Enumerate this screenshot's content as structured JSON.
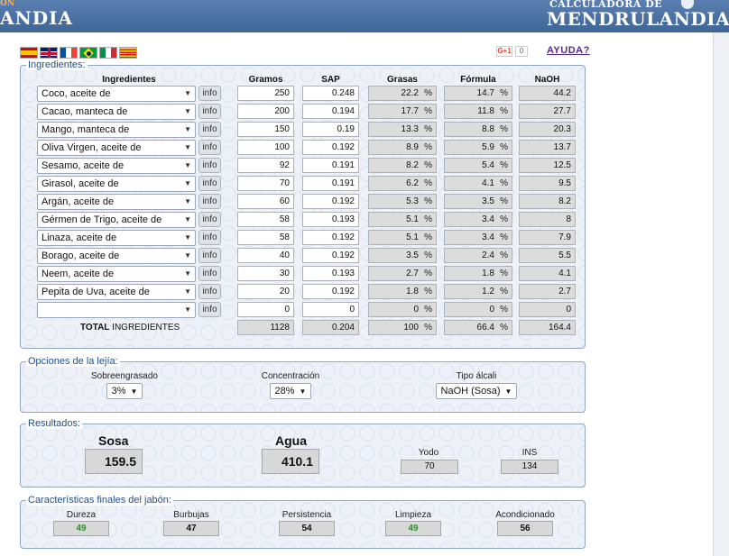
{
  "header": {
    "left_small": "ON",
    "left_big": "ANDIA",
    "right_small": "CALCULADORA DE",
    "right_big": "MENDRULANDIA"
  },
  "flags": [
    "spain-flag",
    "uk-flag",
    "france-flag",
    "brazil-flag",
    "italy-flag",
    "catalonia-flag"
  ],
  "gplus": {
    "label": "G+1",
    "count": "0"
  },
  "help_link": "AYUDA?",
  "ingredientes": {
    "legend": "Ingredientes:",
    "headers": {
      "ingredient": "Ingredientes",
      "grams": "Gramos",
      "sap": "SAP",
      "fat": "Grasas",
      "formula": "Fórmula",
      "naoh": "NaOH"
    },
    "info_label": "info",
    "percent_sign": "%",
    "rows": [
      {
        "name": "Coco, aceite de",
        "grams": "250",
        "sap": "0.248",
        "fat": "22.2",
        "formula": "14.7",
        "naoh": "44.2"
      },
      {
        "name": "Cacao, manteca de",
        "grams": "200",
        "sap": "0.194",
        "fat": "17.7",
        "formula": "11.8",
        "naoh": "27.7"
      },
      {
        "name": "Mango, manteca de",
        "grams": "150",
        "sap": "0.19",
        "fat": "13.3",
        "formula": "8.8",
        "naoh": "20.3"
      },
      {
        "name": "Oliva Virgen, aceite de",
        "grams": "100",
        "sap": "0.192",
        "fat": "8.9",
        "formula": "5.9",
        "naoh": "13.7"
      },
      {
        "name": "Sesamo, aceite de",
        "grams": "92",
        "sap": "0.191",
        "fat": "8.2",
        "formula": "5.4",
        "naoh": "12.5"
      },
      {
        "name": "Girasol, aceite de",
        "grams": "70",
        "sap": "0.191",
        "fat": "6.2",
        "formula": "4.1",
        "naoh": "9.5"
      },
      {
        "name": "Argán, aceite de",
        "grams": "60",
        "sap": "0.192",
        "fat": "5.3",
        "formula": "3.5",
        "naoh": "8.2"
      },
      {
        "name": "Gérmen de Trigo, aceite de",
        "grams": "58",
        "sap": "0.193",
        "fat": "5.1",
        "formula": "3.4",
        "naoh": "8"
      },
      {
        "name": "Linaza, aceite de",
        "grams": "58",
        "sap": "0.192",
        "fat": "5.1",
        "formula": "3.4",
        "naoh": "7.9"
      },
      {
        "name": "Borago, aceite de",
        "grams": "40",
        "sap": "0.192",
        "fat": "3.5",
        "formula": "2.4",
        "naoh": "5.5"
      },
      {
        "name": "Neem, aceite de",
        "grams": "30",
        "sap": "0.193",
        "fat": "2.7",
        "formula": "1.8",
        "naoh": "4.1"
      },
      {
        "name": "Pepita de Uva, aceite de",
        "grams": "20",
        "sap": "0.192",
        "fat": "1.8",
        "formula": "1.2",
        "naoh": "2.7"
      },
      {
        "name": "",
        "grams": "0",
        "sap": "0",
        "fat": "0",
        "formula": "0",
        "naoh": "0"
      }
    ],
    "total": {
      "label_bold": "TOTAL",
      "label_rest": " INGREDIENTES",
      "grams": "1128",
      "sap": "0.204",
      "fat": "100",
      "formula": "66.4",
      "naoh": "164.4"
    }
  },
  "opciones": {
    "legend": "Opciones de la lejía:",
    "sobreengrasado": {
      "label": "Sobreengrasado",
      "value": "3%"
    },
    "concentracion": {
      "label": "Concentración",
      "value": "28%"
    },
    "tipo_alcali": {
      "label": "Tipo álcali",
      "value": "NaOH (Sosa)"
    }
  },
  "resultados": {
    "legend": "Resultados:",
    "sosa": {
      "label": "Sosa",
      "value": "159.5"
    },
    "agua": {
      "label": "Agua",
      "value": "410.1"
    },
    "yodo": {
      "label": "Yodo",
      "value": "70"
    },
    "ins": {
      "label": "INS",
      "value": "134"
    }
  },
  "caracteristicas": {
    "legend": "Características finales del jabón:",
    "items": [
      {
        "label": "Dureza",
        "value": "49",
        "color": "#2e8b2e"
      },
      {
        "label": "Burbujas",
        "value": "47",
        "color": "#111111"
      },
      {
        "label": "Persistencia",
        "value": "54",
        "color": "#111111"
      },
      {
        "label": "Limpieza",
        "value": "49",
        "color": "#2e8b2e"
      },
      {
        "label": "Acondicionado",
        "value": "56",
        "color": "#111111"
      }
    ]
  }
}
